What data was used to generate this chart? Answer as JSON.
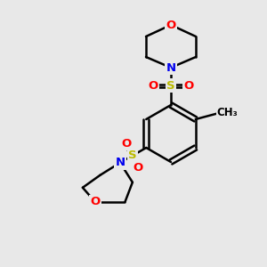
{
  "bg_color": "#e8e8e8",
  "bond_color": "#000000",
  "bond_width": 1.8,
  "atom_colors": {
    "O": "#ff0000",
    "N": "#0000ee",
    "S": "#bbbb00",
    "C": "#000000"
  },
  "font_size": 9.5,
  "font_size_small": 8.5
}
